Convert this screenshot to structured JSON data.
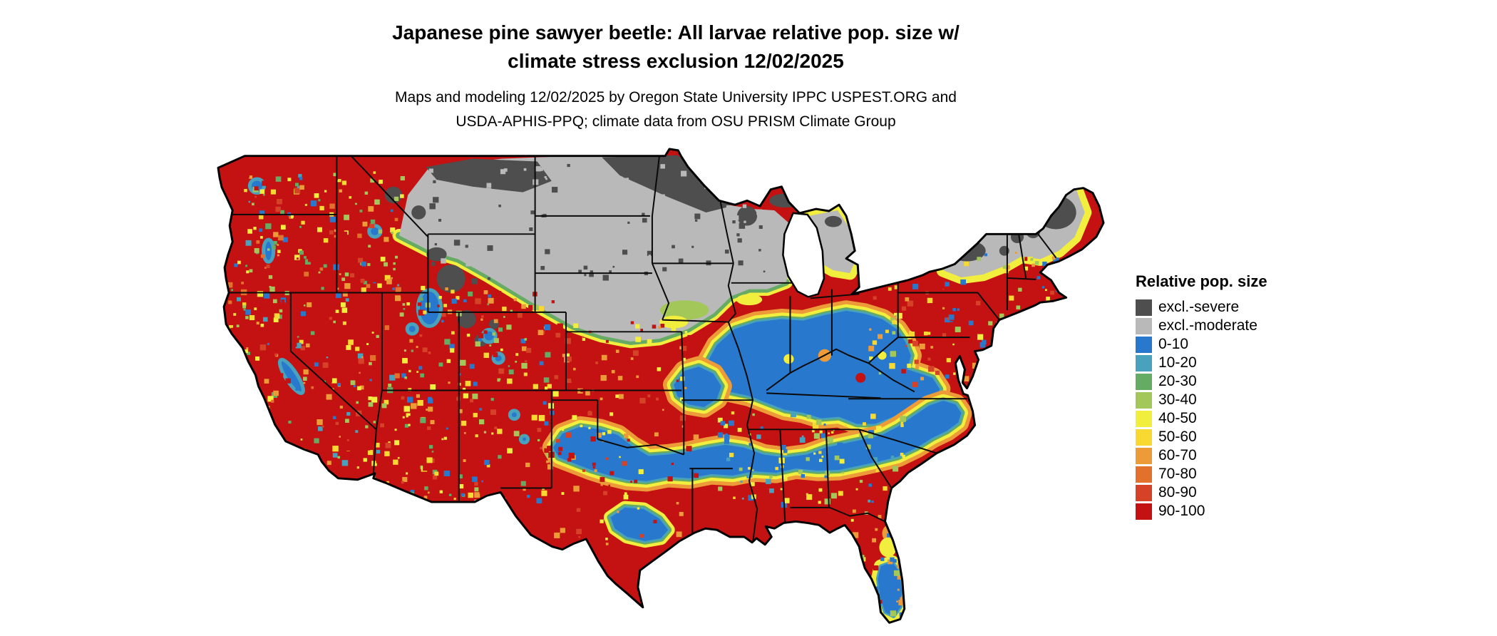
{
  "title": {
    "line1": "Japanese pine sawyer beetle: All larvae relative pop. size w/",
    "line2": "climate stress exclusion 12/02/2025"
  },
  "subtitle": {
    "line1": "Maps and modeling 12/02/2025 by Oregon State University IPPC USPEST.ORG and",
    "line2": "USDA-APHIS-PPQ; climate data from OSU PRISM Climate Group"
  },
  "map": {
    "area": "Contiguous United States",
    "kind": "raster choropleth of relative population size",
    "dominant_category": "90-100"
  },
  "legend": {
    "title": "Relative pop. size",
    "items": [
      {
        "label": "excl.-severe",
        "color": "#4e4e4e"
      },
      {
        "label": "excl.-moderate",
        "color": "#b9b9b9"
      },
      {
        "label": "0-10",
        "color": "#2878cd"
      },
      {
        "label": "10-20",
        "color": "#49a2bd"
      },
      {
        "label": "20-30",
        "color": "#66ab63"
      },
      {
        "label": "30-40",
        "color": "#a4c75a"
      },
      {
        "label": "40-50",
        "color": "#f2ee3e"
      },
      {
        "label": "50-60",
        "color": "#f7d931"
      },
      {
        "label": "60-70",
        "color": "#ec9b38"
      },
      {
        "label": "70-80",
        "color": "#e2712c"
      },
      {
        "label": "80-90",
        "color": "#d64228"
      },
      {
        "label": "90-100",
        "color": "#c41111"
      }
    ]
  }
}
